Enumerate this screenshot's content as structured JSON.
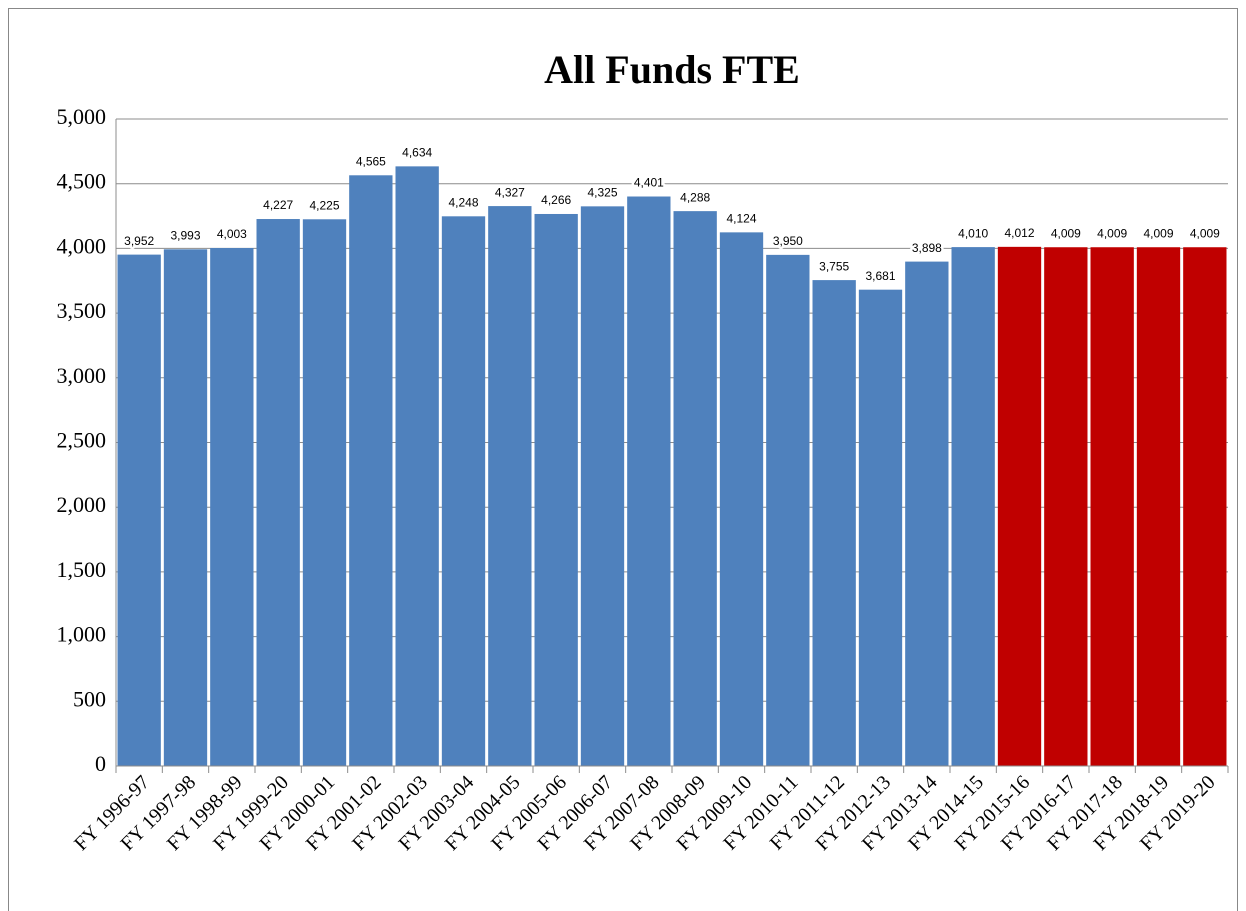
{
  "chart_data": {
    "type": "bar",
    "title": "All Funds FTE",
    "categories": [
      "FY 1996-97",
      "FY 1997-98",
      "FY 1998-99",
      "FY 1999-20",
      "FY 2000-01",
      "FY 2001-02",
      "FY 2002-03",
      "FY 2003-04",
      "FY 2004-05",
      "FY 2005-06",
      "FY 2006-07",
      "FY 2007-08",
      "FY 2008-09",
      "FY 2009-10",
      "FY 2010-11",
      "FY 2011-12",
      "FY 2012-13",
      "FY 2013-14",
      "FY 2014-15",
      "FY 2015-16",
      "FY 2016-17",
      "FY 2017-18",
      "FY 2018-19",
      "FY 2019-20"
    ],
    "values": [
      3952,
      3993,
      4003,
      4227,
      4225,
      4565,
      4634,
      4248,
      4327,
      4266,
      4325,
      4401,
      4288,
      4124,
      3950,
      3755,
      3681,
      3898,
      4010,
      4012,
      4009,
      4009,
      4009,
      4009
    ],
    "value_labels": [
      "3,952",
      "3,993",
      "4,003",
      "4,227",
      "4,225",
      "4,565",
      "4,634",
      "4,248",
      "4,327",
      "4,266",
      "4,325",
      "4,401",
      "4,288",
      "4,124",
      "3,950",
      "3,755",
      "3,681",
      "3,898",
      "4,010",
      "4,012",
      "4,009",
      "4,009",
      "4,009",
      "4,009"
    ],
    "colors": [
      "#4f81bd",
      "#4f81bd",
      "#4f81bd",
      "#4f81bd",
      "#4f81bd",
      "#4f81bd",
      "#4f81bd",
      "#4f81bd",
      "#4f81bd",
      "#4f81bd",
      "#4f81bd",
      "#4f81bd",
      "#4f81bd",
      "#4f81bd",
      "#4f81bd",
      "#4f81bd",
      "#4f81bd",
      "#4f81bd",
      "#4f81bd",
      "#c00000",
      "#c00000",
      "#c00000",
      "#c00000",
      "#c00000"
    ],
    "ylim": [
      0,
      5000
    ],
    "yticks": [
      0,
      500,
      {
        "value": 1000,
        "label": "1,000"
      },
      {
        "value": 1500,
        "label": "1,500"
      },
      {
        "value": 2000,
        "label": "2,000"
      },
      {
        "value": 2500,
        "label": "2,500"
      },
      {
        "value": 3000,
        "label": "3,000"
      },
      {
        "value": 3500,
        "label": "3,500"
      },
      {
        "value": 4000,
        "label": "4,000"
      },
      {
        "value": 4500,
        "label": "4,500"
      },
      {
        "value": 5000,
        "label": "5,000"
      }
    ],
    "grid": true
  }
}
